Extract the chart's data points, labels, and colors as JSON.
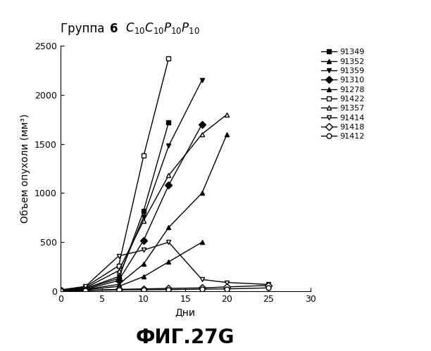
{
  "title_regular": "Группа  ",
  "title_bold": "6",
  "title_formula": "  $C_{10}C_{10}P_{10}P_{10}$",
  "ylabel": "Объем опухоли (мм³)",
  "xlabel": "Дни",
  "fig_label": "ФИГ.27G",
  "xlim": [
    0,
    30
  ],
  "ylim": [
    0,
    2500
  ],
  "xticks": [
    0,
    5,
    10,
    15,
    20,
    25,
    30
  ],
  "yticks": [
    0,
    500,
    1000,
    1500,
    2000,
    2500
  ],
  "series": [
    {
      "label": "91349",
      "marker": "s",
      "fillstyle": "full",
      "x": [
        0,
        3,
        7,
        10,
        13
      ],
      "y": [
        10,
        30,
        130,
        820,
        1720
      ]
    },
    {
      "label": "91352",
      "marker": "^",
      "fillstyle": "full",
      "x": [
        0,
        3,
        7,
        10,
        13,
        17,
        20
      ],
      "y": [
        10,
        20,
        70,
        280,
        650,
        1000,
        1600
      ]
    },
    {
      "label": "91359",
      "marker": "v",
      "fillstyle": "full",
      "x": [
        0,
        3,
        7,
        10,
        13,
        17
      ],
      "y": [
        10,
        30,
        150,
        760,
        1480,
        2150
      ]
    },
    {
      "label": "91310",
      "marker": "D",
      "fillstyle": "full",
      "x": [
        0,
        3,
        7,
        10,
        13,
        17
      ],
      "y": [
        10,
        20,
        110,
        520,
        1080,
        1700
      ]
    },
    {
      "label": "91278",
      "marker": "^",
      "fillstyle": "full",
      "x": [
        0,
        3,
        7,
        10,
        13,
        17
      ],
      "y": [
        5,
        15,
        50,
        150,
        300,
        500
      ]
    },
    {
      "label": "91422",
      "marker": "s",
      "fillstyle": "none",
      "x": [
        0,
        3,
        7,
        10,
        13
      ],
      "y": [
        10,
        45,
        260,
        1380,
        2370
      ]
    },
    {
      "label": "91357",
      "marker": "^",
      "fillstyle": "none",
      "x": [
        0,
        3,
        7,
        10,
        13,
        17,
        20
      ],
      "y": [
        10,
        35,
        210,
        720,
        1180,
        1600,
        1800
      ]
    },
    {
      "label": "91414",
      "marker": "v",
      "fillstyle": "none",
      "x": [
        0,
        3,
        7,
        10,
        13,
        17,
        20,
        25
      ],
      "y": [
        15,
        50,
        360,
        420,
        500,
        120,
        90,
        70
      ]
    },
    {
      "label": "91418",
      "marker": "D",
      "fillstyle": "none",
      "x": [
        0,
        3,
        7,
        10,
        13,
        17,
        20,
        25
      ],
      "y": [
        5,
        10,
        20,
        25,
        30,
        35,
        45,
        60
      ]
    },
    {
      "label": "91412",
      "marker": "o",
      "fillstyle": "none",
      "x": [
        0,
        3,
        7,
        10,
        13,
        17,
        20,
        25
      ],
      "y": [
        5,
        8,
        15,
        15,
        18,
        22,
        25,
        35
      ]
    }
  ],
  "background_color": "#ffffff",
  "line_color": "#000000",
  "fontsize_title": 12,
  "fontsize_label": 10,
  "fontsize_tick": 9,
  "fontsize_legend": 8,
  "fontsize_fig_label": 20
}
